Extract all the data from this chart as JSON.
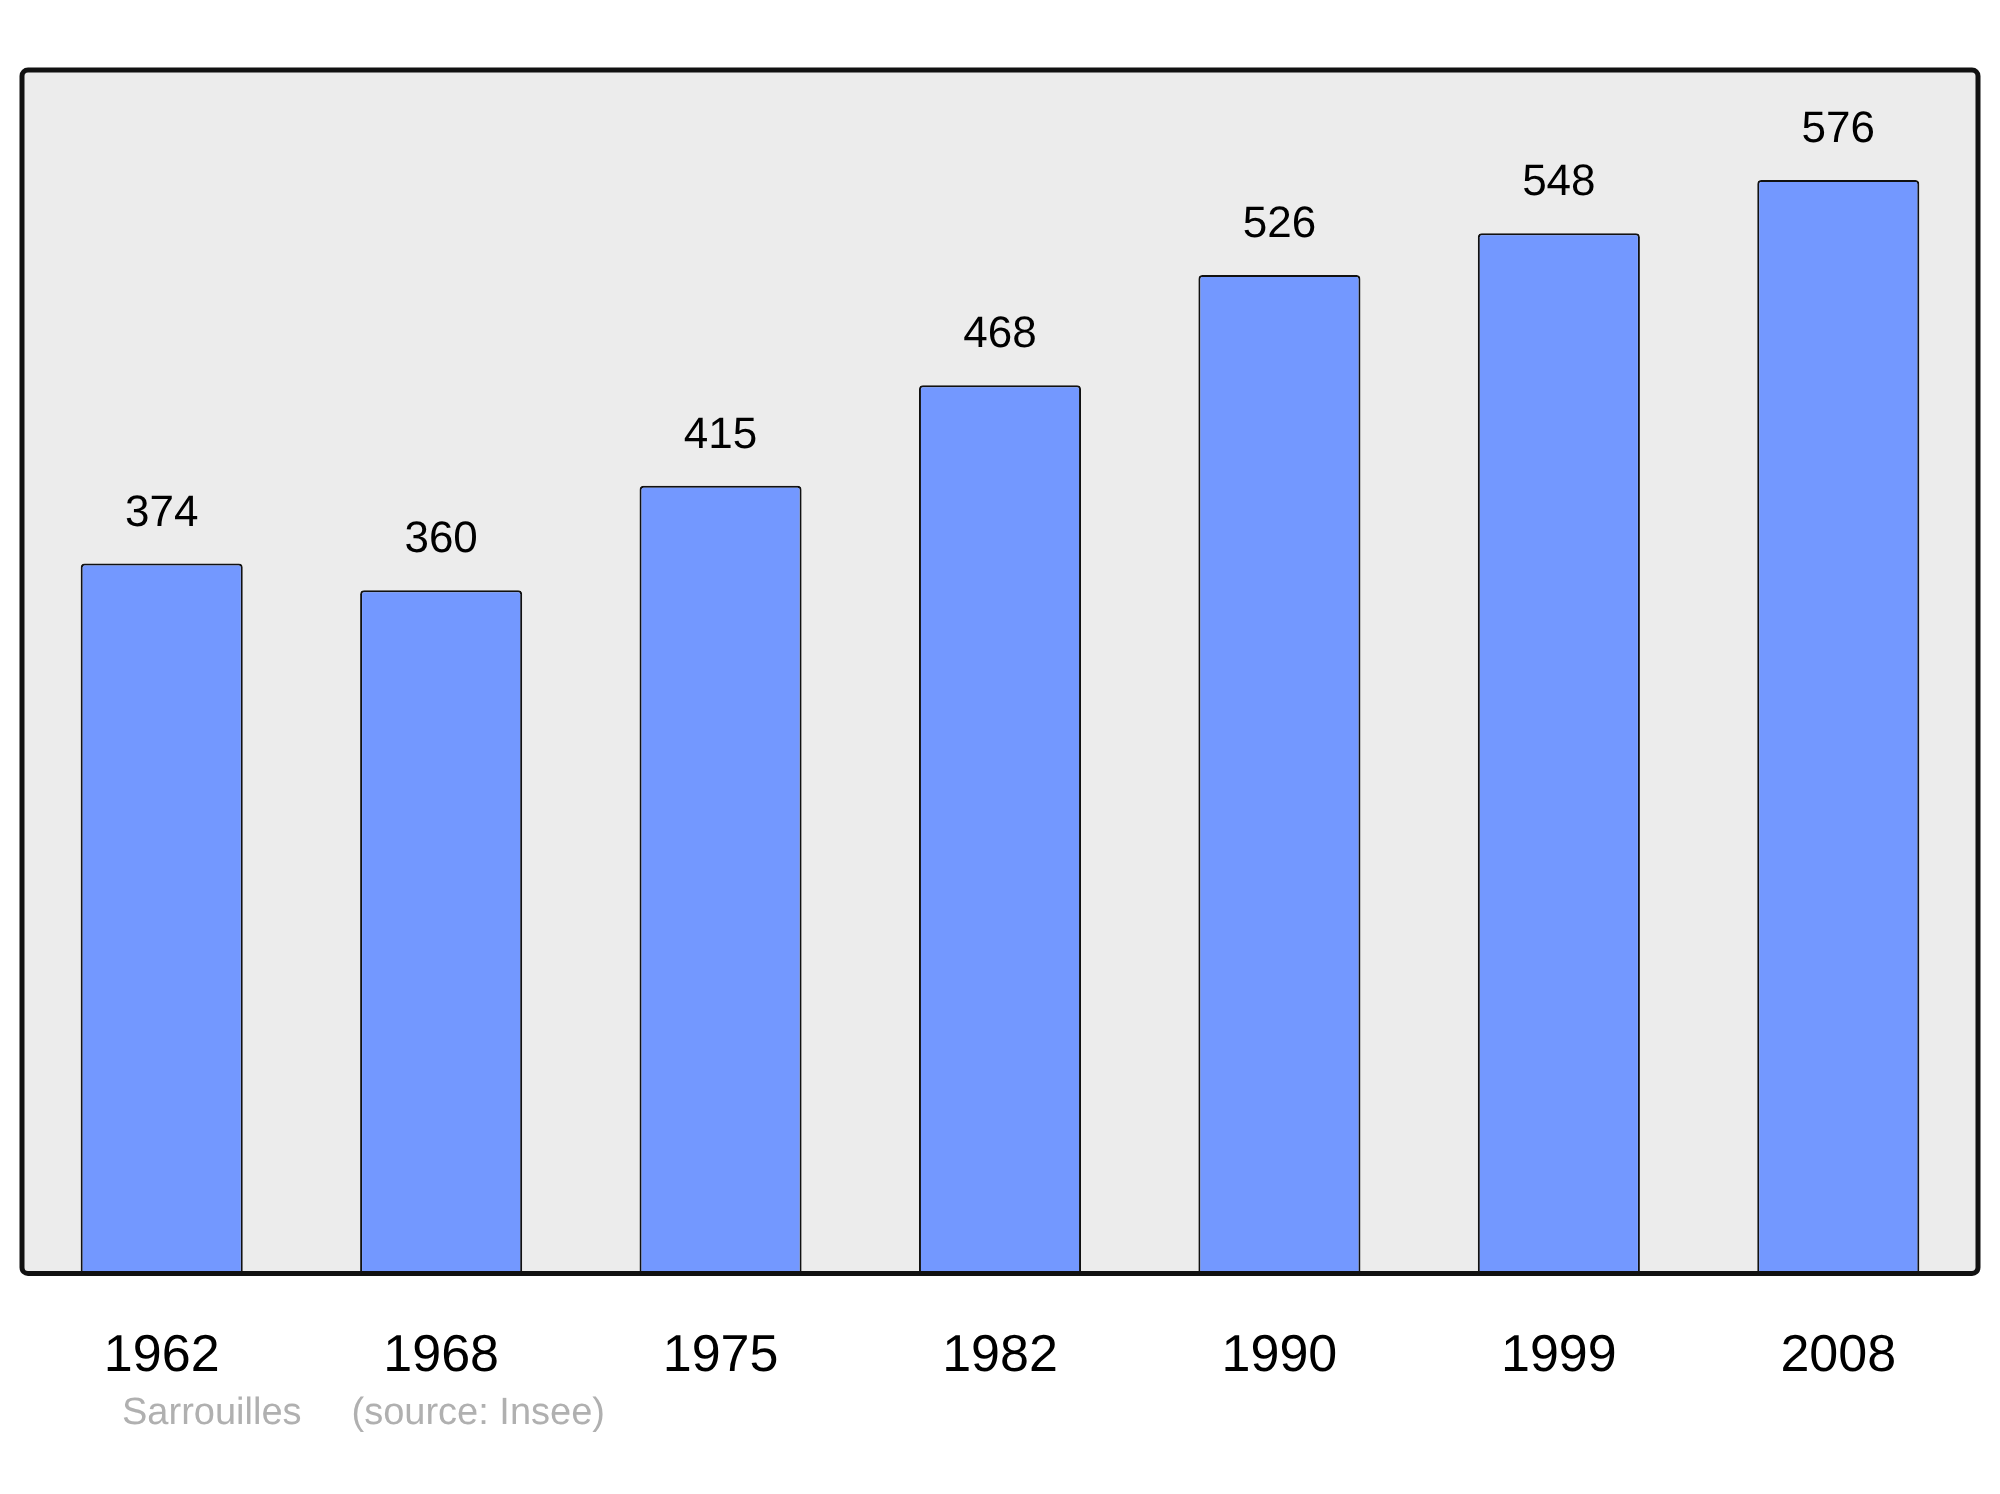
{
  "chart_data": {
    "type": "bar",
    "categories": [
      "1962",
      "1968",
      "1975",
      "1982",
      "1990",
      "1999",
      "2008"
    ],
    "values": [
      374,
      360,
      415,
      468,
      526,
      548,
      576
    ],
    "color": "#7398ff",
    "ylim": [
      0,
      634
    ],
    "data_labels": true,
    "grid": false,
    "legend": false,
    "annotations": [
      "Sarrouilles",
      "(source: Insee)"
    ]
  }
}
